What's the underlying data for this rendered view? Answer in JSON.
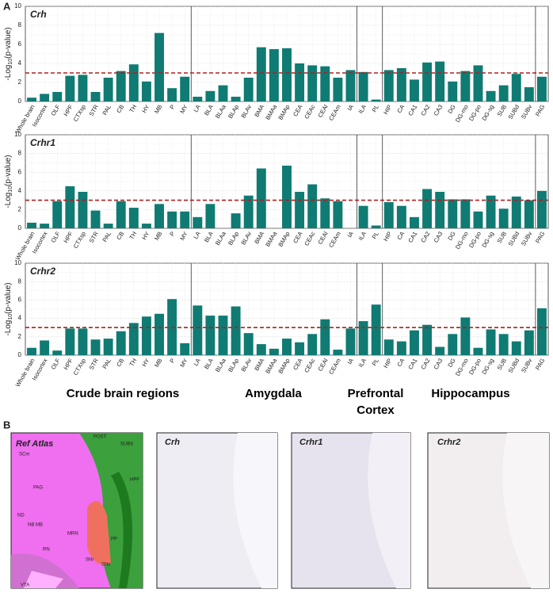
{
  "panel_labels": [
    "A",
    "B"
  ],
  "groups": [
    [
      "Crude brain regions"
    ],
    [
      "Amygdala"
    ],
    [
      "Prefrontal",
      "Cortex"
    ],
    [
      "Hippocampus"
    ]
  ],
  "chart_data": [
    {
      "type": "bar",
      "title": "Crh",
      "ylabel": [
        "-Log",
        "10",
        "(p-value)"
      ],
      "color": "#0f7b73",
      "threshold": 3,
      "threshold_color": "#b01f1f",
      "categories": [
        "Whole brain",
        "Isocortex",
        "OLF",
        "HPF",
        "CTXsp",
        "STR",
        "PAL",
        "CB",
        "TH",
        "HY",
        "MB",
        "P",
        "MY",
        "LA",
        "BLA",
        "BLAa",
        "BLAp",
        "BLAv",
        "BMA",
        "BMAa",
        "BMAp",
        "CEA",
        "CEAc",
        "CEAl",
        "CEAm",
        "IA",
        "ILA",
        "PL",
        "HIP",
        "CA",
        "CA1",
        "CA2",
        "CA3",
        "DG",
        "DG-mo",
        "DG-po",
        "DG-sg",
        "SUB",
        "SUBd",
        "SUBv",
        "PAG"
      ],
      "values": [
        0.4,
        0.8,
        1.0,
        2.7,
        2.8,
        1.0,
        2.5,
        3.2,
        3.9,
        2.1,
        7.2,
        1.4,
        2.6,
        0.5,
        1.1,
        1.7,
        0.5,
        2.5,
        5.7,
        5.5,
        5.6,
        4.0,
        3.8,
        3.7,
        2.5,
        3.3,
        3.1,
        0.2,
        3.3,
        3.5,
        2.3,
        4.1,
        4.2,
        2.1,
        3.2,
        3.8,
        1.1,
        1.7,
        2.9,
        1.5,
        2.6
      ],
      "ylim": [
        0,
        10
      ],
      "yticks": [
        0,
        2,
        4,
        6,
        8,
        10
      ],
      "grid": true
    },
    {
      "type": "bar",
      "title": "Crhr1",
      "ylabel": [
        "-Log",
        "10",
        "(p-value)"
      ],
      "color": "#0f7b73",
      "threshold": 3,
      "threshold_color": "#b01f1f",
      "categories": [
        "Whole brain",
        "Isocortex",
        "OLF",
        "HPF",
        "CTXsp",
        "STR",
        "PAL",
        "CB",
        "TH",
        "HY",
        "MB",
        "P",
        "MY",
        "LA",
        "BLA",
        "BLAa",
        "BLAp",
        "BLAv",
        "BMA",
        "BMAa",
        "BMAp",
        "CEA",
        "CEAc",
        "CEAl",
        "CEAm",
        "IA",
        "ILA",
        "PL",
        "HIP",
        "CA",
        "CA1",
        "CA2",
        "CA3",
        "DG",
        "DG-mo",
        "DG-po",
        "DG-sg",
        "SUB",
        "SUBd",
        "SUBv",
        "PAG"
      ],
      "values": [
        0.6,
        0.5,
        2.9,
        4.5,
        3.9,
        1.9,
        0.5,
        2.9,
        2.2,
        0.5,
        2.6,
        1.8,
        1.8,
        1.2,
        2.6,
        0,
        1.6,
        3.5,
        6.4,
        0,
        6.7,
        3.9,
        4.7,
        3.2,
        2.9,
        0,
        2.4,
        0.3,
        2.8,
        2.4,
        1.2,
        4.2,
        3.9,
        3.1,
        3.1,
        1.8,
        3.5,
        2.1,
        3.4,
        3.0,
        4.0
      ],
      "ylim": [
        0,
        10
      ],
      "yticks": [
        0,
        2,
        4,
        6,
        8,
        10
      ],
      "grid": true
    },
    {
      "type": "bar",
      "title": "Crhr2",
      "ylabel": [
        "-Log",
        "10",
        "(p-value)"
      ],
      "color": "#0f7b73",
      "threshold": 3,
      "threshold_color": "#b01f1f",
      "categories": [
        "Whole brain",
        "Isocortex",
        "OLF",
        "HPF",
        "CTXsp",
        "STR",
        "PAL",
        "CB",
        "TH",
        "HY",
        "MB",
        "P",
        "MY",
        "LA",
        "BLA",
        "BLAa",
        "BLAp",
        "BLAv",
        "BMA",
        "BMAa",
        "BMAp",
        "CEA",
        "CEAc",
        "CEAl",
        "CEAm",
        "IA",
        "ILA",
        "PL",
        "HIP",
        "CA",
        "CA1",
        "CA2",
        "CA3",
        "DG",
        "DG-mo",
        "DG-po",
        "DG-sg",
        "SUB",
        "SUBd",
        "SUBv",
        "PAG"
      ],
      "values": [
        0.8,
        1.6,
        0.5,
        2.9,
        2.9,
        1.7,
        1.8,
        2.6,
        3.5,
        4.2,
        4.5,
        6.1,
        1.3,
        5.4,
        4.3,
        4.3,
        5.3,
        2.4,
        1.2,
        0.7,
        1.8,
        1.4,
        2.3,
        3.9,
        0.6,
        2.9,
        3.7,
        5.5,
        1.7,
        1.5,
        2.7,
        3.3,
        0.9,
        2.3,
        4.1,
        0.8,
        2.8,
        2.3,
        1.5,
        2.7,
        5.1
      ],
      "ylim": [
        0,
        10
      ],
      "yticks": [
        0,
        2,
        4,
        6,
        8,
        10
      ],
      "grid": true
    }
  ],
  "panel_b": {
    "images": [
      "Ref Atlas",
      "Crh",
      "Crhr1",
      "Crhr2"
    ],
    "atlas_labels": [
      "SCm",
      "POST",
      "SUBd",
      "HPF",
      "PAG",
      "ND",
      "MB",
      "MRN",
      "RN",
      "NB",
      "SNr",
      "SNc",
      "PP",
      "VTA"
    ]
  }
}
